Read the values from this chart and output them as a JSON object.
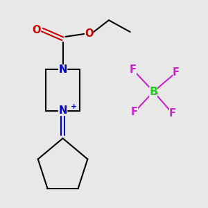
{
  "bg_color": "#e8e8e8",
  "bond_color": "#000000",
  "N_color": "#0000cc",
  "O_color": "#cc0000",
  "B_color": "#22cc22",
  "F_color": "#cc22cc",
  "line_width": 1.5,
  "font_size_atom": 10.5,
  "fig_w": 3.0,
  "fig_h": 3.0,
  "dpi": 100,
  "xlim": [
    0,
    300
  ],
  "ylim": [
    0,
    300
  ]
}
